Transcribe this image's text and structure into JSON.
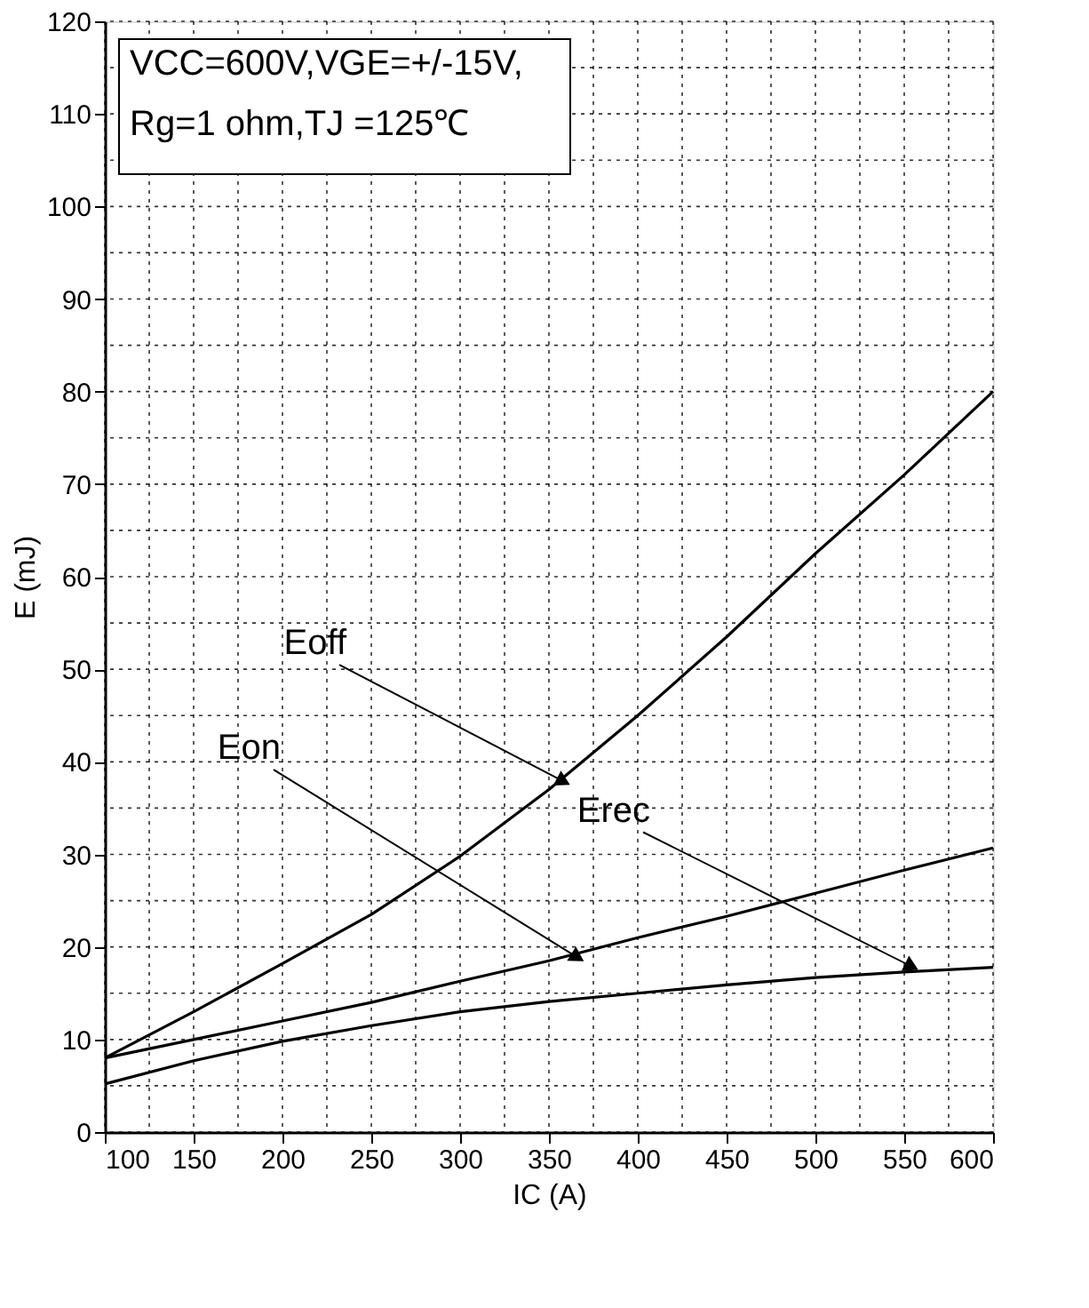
{
  "chart_data": {
    "type": "line",
    "xlabel": "IC (A)",
    "ylabel": "E (mJ)",
    "x": [
      100,
      150,
      200,
      250,
      300,
      350,
      400,
      450,
      500,
      550,
      600
    ],
    "series": [
      {
        "color": "#000000",
        "values": [
          8,
          13,
          18.2,
          23.5,
          29.8,
          37,
          45,
          53.5,
          62.5,
          71,
          80
        ]
      },
      {
        "color": "#000000",
        "values": [
          8,
          10,
          12,
          14,
          16.3,
          18.5,
          21,
          23.3,
          25.8,
          28.3,
          30.7
        ]
      },
      {
        "color": "#000000",
        "values": [
          5.2,
          7.7,
          9.8,
          11.5,
          13,
          14.1,
          15,
          15.9,
          16.7,
          17.3,
          17.8
        ]
      }
    ],
    "xlim": [
      100,
      600
    ],
    "xticks": [
      100,
      {
        "value": 125,
        "label": null
      },
      150,
      {
        "value": 175,
        "label": null
      },
      200,
      {
        "value": 225,
        "label": null
      },
      250,
      {
        "value": 275,
        "label": null
      },
      300,
      {
        "value": 325,
        "label": null
      },
      350,
      {
        "value": 375,
        "label": null
      },
      400,
      {
        "value": 425,
        "label": null
      },
      450,
      {
        "value": 475,
        "label": null
      },
      500,
      {
        "value": 525,
        "label": null
      },
      550,
      {
        "value": 575,
        "label": null
      },
      600
    ],
    "ylim": [
      0,
      120
    ],
    "yticks": [
      0,
      {
        "value": 5,
        "label": null
      },
      10,
      {
        "value": 15,
        "label": null
      },
      20,
      {
        "value": 25,
        "label": null
      },
      30,
      {
        "value": 35,
        "label": null
      },
      40,
      {
        "value": 45,
        "label": null
      },
      50,
      {
        "value": 55,
        "label": null
      },
      60,
      {
        "value": 65,
        "label": null
      },
      70,
      {
        "value": 75,
        "label": null
      },
      80,
      {
        "value": 85,
        "label": null
      },
      90,
      {
        "value": 95,
        "label": null
      },
      100,
      {
        "value": 105,
        "label": null
      },
      110,
      {
        "value": 115,
        "label": null
      },
      120
    ],
    "grid": true,
    "legend": false,
    "marker": "none",
    "line_style": "solid",
    "annotations": [
      "VCC=600V,VGE=+/-15V,",
      "Rg=1 ohm,TJ =125℃",
      {
        "text": "Eoff",
        "x": 357,
        "y": 38
      },
      {
        "text": "Eon",
        "x": 365,
        "y": 19
      },
      {
        "text": "Erec",
        "x": 553,
        "y": 18
      }
    ]
  }
}
